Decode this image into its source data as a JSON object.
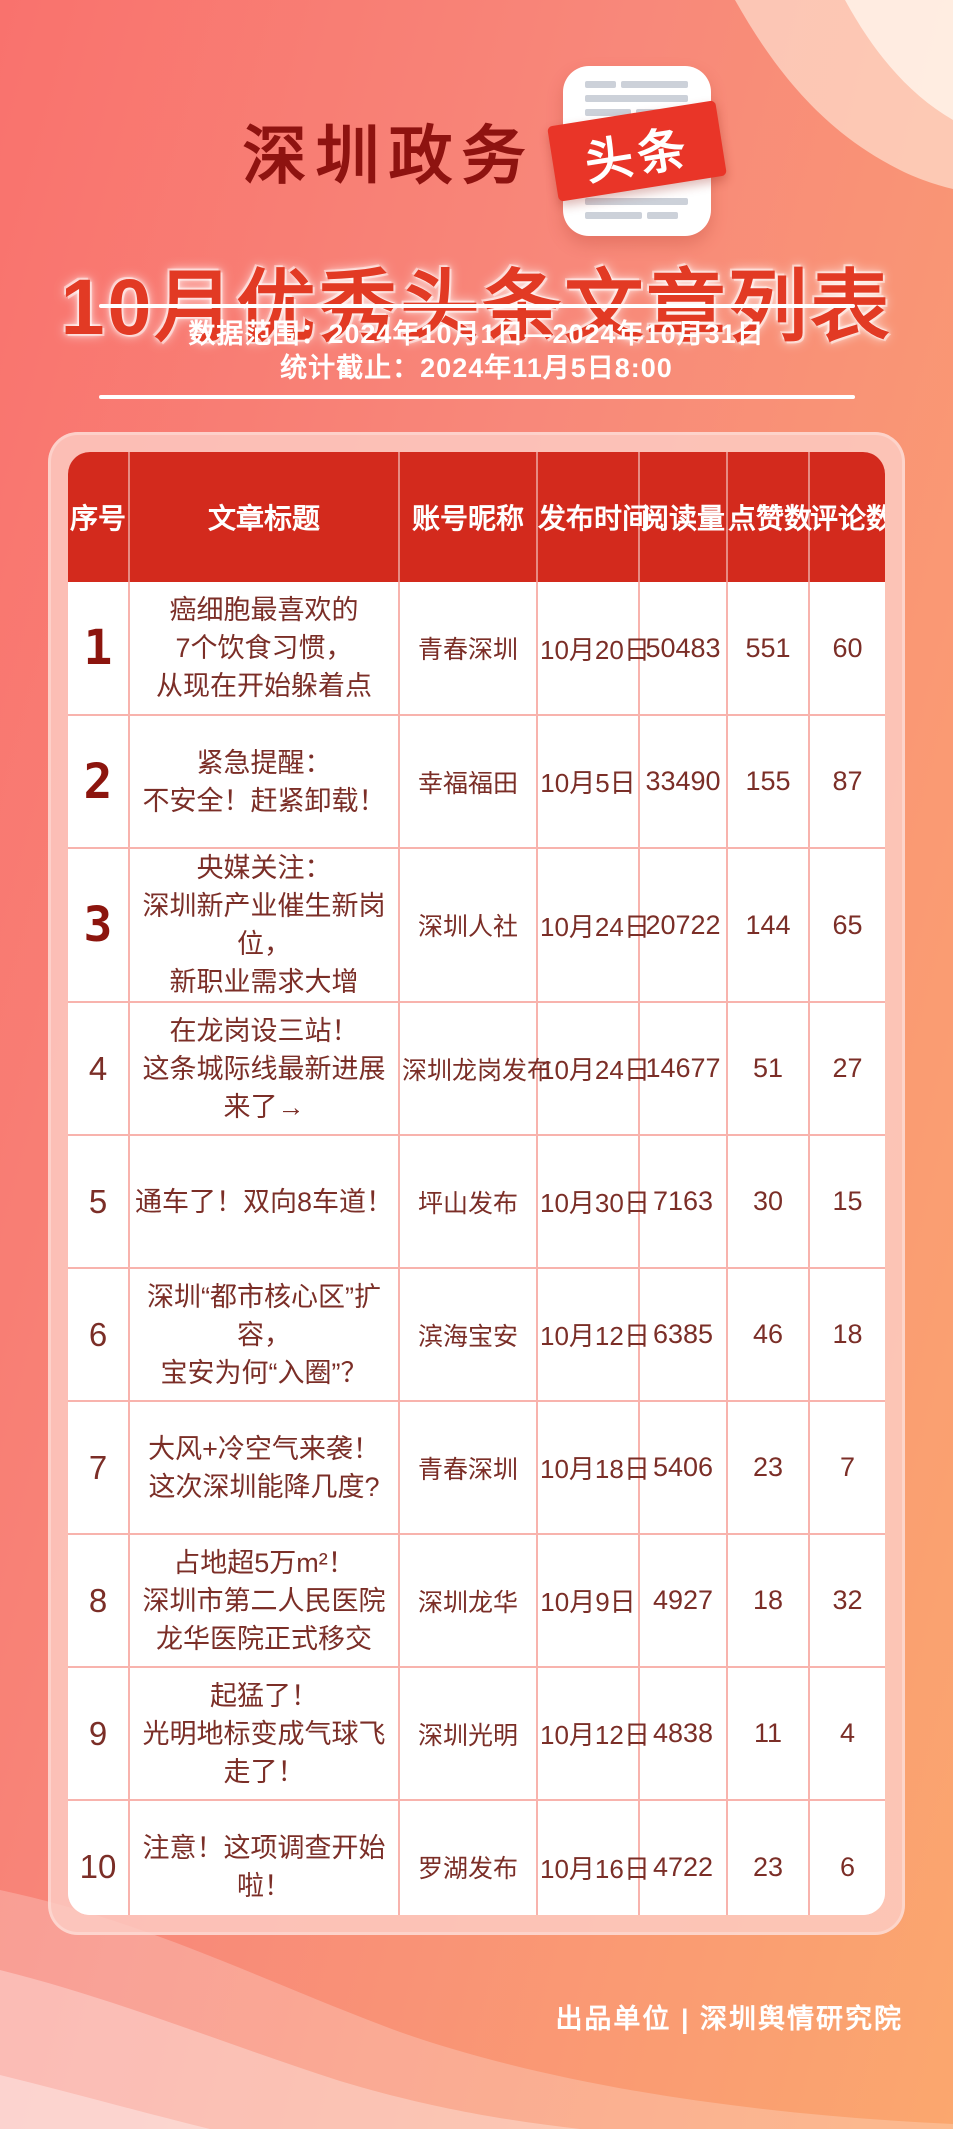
{
  "header": {
    "brand": "深圳政务",
    "logo_text": "头条",
    "title": "10月优秀头条文章列表"
  },
  "meta": {
    "range": "数据范围：2024年10月1日—2024年10月31日",
    "deadline": "统计截止：2024年11月5日8:00"
  },
  "table": {
    "columns": [
      "序号",
      "文章标题",
      "账号昵称",
      "发布时间",
      "阅读量",
      "点赞数",
      "评论数"
    ],
    "rows": [
      {
        "rank": "1",
        "title": "癌细胞最喜欢的\n7个饮食习惯，\n从现在开始躲着点",
        "account": "青春深圳",
        "date": "10月20日",
        "reads": "50483",
        "likes": "551",
        "comments": "60"
      },
      {
        "rank": "2",
        "title": "紧急提醒：\n不安全！赶紧卸载！",
        "account": "幸福福田",
        "date": "10月5日",
        "reads": "33490",
        "likes": "155",
        "comments": "87"
      },
      {
        "rank": "3",
        "title": "央媒关注：\n深圳新产业催生新岗位，\n新职业需求大增",
        "account": "深圳人社",
        "date": "10月24日",
        "reads": "20722",
        "likes": "144",
        "comments": "65"
      },
      {
        "rank": "4",
        "title": "在龙岗设三站！\n这条城际线最新进展来了→",
        "account": "深圳龙岗发布",
        "date": "10月24日",
        "reads": "14677",
        "likes": "51",
        "comments": "27"
      },
      {
        "rank": "5",
        "title": "通车了！双向8车道！",
        "account": "坪山发布",
        "date": "10月30日",
        "reads": "7163",
        "likes": "30",
        "comments": "15"
      },
      {
        "rank": "6",
        "title": "深圳“都市核心区”扩容，\n宝安为何“入圈”？",
        "account": "滨海宝安",
        "date": "10月12日",
        "reads": "6385",
        "likes": "46",
        "comments": "18"
      },
      {
        "rank": "7",
        "title": "大风+冷空气来袭！\n这次深圳能降几度?",
        "account": "青春深圳",
        "date": "10月18日",
        "reads": "5406",
        "likes": "23",
        "comments": "7"
      },
      {
        "rank": "8",
        "title": "占地超5万m²！\n深圳市第二人民医院\n龙华医院正式移交",
        "account": "深圳龙华",
        "date": "10月9日",
        "reads": "4927",
        "likes": "18",
        "comments": "32"
      },
      {
        "rank": "9",
        "title": "起猛了！\n光明地标变成气球飞走了！",
        "account": "深圳光明",
        "date": "10月12日",
        "reads": "4838",
        "likes": "11",
        "comments": "4"
      },
      {
        "rank": "10",
        "title": "注意！这项调查开始啦！",
        "account": "罗湖发布",
        "date": "10月16日",
        "reads": "4722",
        "likes": "23",
        "comments": "6"
      }
    ]
  },
  "footer": {
    "credit": "出品单位 | 深圳舆情研究院"
  },
  "colors": {
    "header_red": "#d32a1d",
    "title_red": "#e23a24",
    "brand_dark_red": "#8e1310",
    "logo_red": "#e93528",
    "cell_text_maroon": "#7b2e27",
    "grid_pink": "#f8b3ad",
    "card_pink": "#fdcdc5"
  }
}
